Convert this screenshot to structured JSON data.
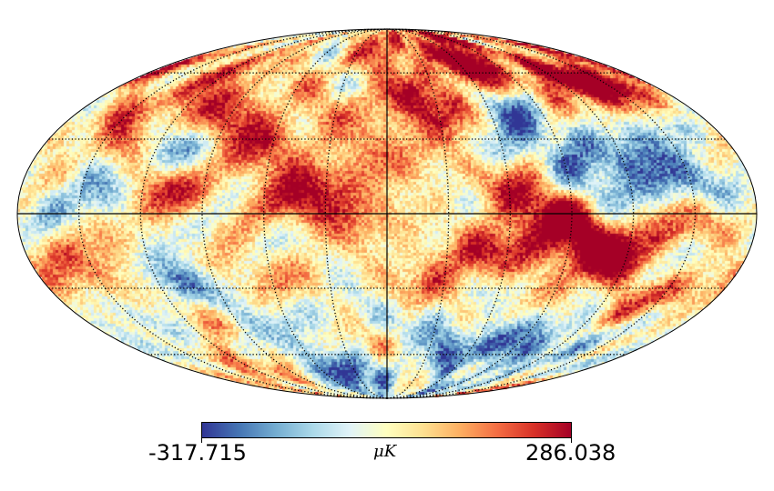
{
  "map": {
    "projection": "mollweide",
    "graticule": {
      "parallels_deg": [
        -60,
        -30,
        0,
        30,
        60
      ],
      "meridians_deg": [
        -150,
        -120,
        -90,
        -60,
        -30,
        0,
        30,
        60,
        90,
        120,
        150
      ]
    },
    "colormap": "RdYlBu_r"
  },
  "colorbar": {
    "min_label": "-317.715",
    "max_label": "286.038",
    "unit_label": "μK",
    "min_value": -317.715,
    "max_value": 286.038,
    "colors": [
      "#313695",
      "#4575b4",
      "#74add1",
      "#abd9e9",
      "#e0f3f8",
      "#ffffbf",
      "#fee090",
      "#fdae61",
      "#f46d43",
      "#d73027",
      "#a50026"
    ]
  }
}
